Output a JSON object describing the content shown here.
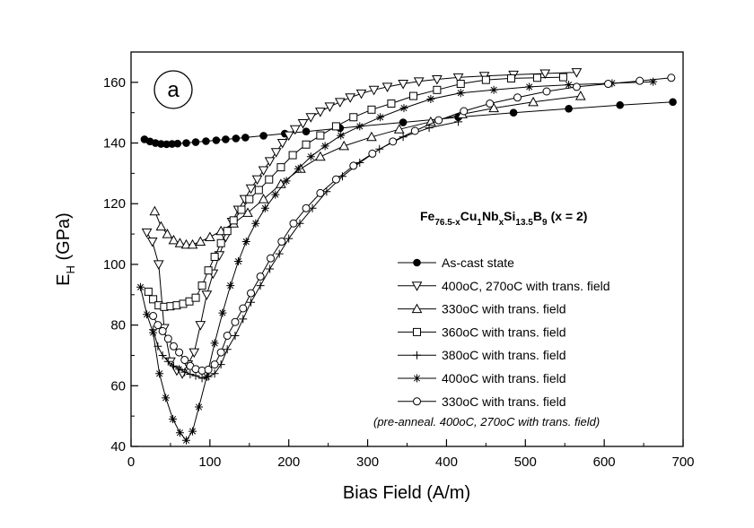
{
  "chart_data": {
    "type": "line",
    "panel_label": "a",
    "xlabel": "Bias Field (A/m)",
    "ylabel": {
      "main": "E",
      "sub": "H",
      "rest": " (GPa)"
    },
    "xlim": [
      0,
      700
    ],
    "ylim": [
      40,
      170
    ],
    "xticks": [
      0,
      100,
      200,
      300,
      400,
      500,
      600,
      700
    ],
    "yticks": [
      40,
      60,
      80,
      100,
      120,
      140,
      160
    ],
    "grid": false,
    "legend_position": "lower-right",
    "formula": [
      {
        "text": "Fe",
        "sub": false
      },
      {
        "text": "76.5-x",
        "sub": true
      },
      {
        "text": "Cu",
        "sub": false
      },
      {
        "text": "1",
        "sub": true
      },
      {
        "text": "Nb",
        "sub": false
      },
      {
        "text": "x",
        "sub": true
      },
      {
        "text": "Si",
        "sub": false
      },
      {
        "text": "13.5",
        "sub": true
      },
      {
        "text": "B",
        "sub": false
      },
      {
        "text": "9",
        "sub": true
      },
      {
        "text": "(x = 2)",
        "sub": false
      }
    ],
    "note": "(pre-anneal. 400oC, 270oC with trans. field)",
    "series": [
      {
        "name": "As-cast state",
        "marker": "filled-circle",
        "x": [
          17,
          24,
          31,
          38,
          45,
          52,
          59,
          70,
          82,
          95,
          108,
          120,
          133,
          145,
          168,
          195,
          222,
          265,
          345,
          415,
          485,
          555,
          620,
          687
        ],
        "y": [
          141.2,
          140.5,
          140,
          139.7,
          139.6,
          139.7,
          139.8,
          140,
          140.3,
          140.6,
          140.9,
          141.2,
          141.5,
          141.8,
          142.4,
          143.1,
          143.8,
          144.9,
          146.8,
          148.5,
          150.0,
          151.3,
          152.5,
          153.5
        ]
      },
      {
        "name": "400oC, 270oC with trans. field",
        "marker": "triangle-down",
        "x": [
          20,
          27,
          35,
          42,
          50,
          58,
          65,
          72,
          80,
          88,
          96,
          104,
          112,
          120,
          128,
          136,
          144,
          152,
          160,
          168,
          176,
          184,
          192,
          200,
          208,
          218,
          228,
          240,
          252,
          265,
          278,
          292,
          308,
          325,
          345,
          365,
          388,
          415,
          448,
          485,
          525,
          565
        ],
        "y": [
          110.5,
          107.5,
          100,
          79,
          68,
          65,
          64,
          67,
          71,
          80,
          90,
          97,
          103,
          109,
          114,
          118,
          121.5,
          125,
          128,
          131,
          134,
          137,
          140,
          142.5,
          144.5,
          146.5,
          148.5,
          150.3,
          152,
          153.5,
          155,
          156.3,
          157.5,
          158.5,
          159.5,
          160.3,
          161,
          161.6,
          162.1,
          162.5,
          162.9,
          163.3
        ]
      },
      {
        "name": "330oC with trans. field",
        "marker": "triangle-up",
        "x": [
          30,
          38,
          46,
          54,
          62,
          70,
          78,
          88,
          100,
          114,
          130,
          148,
          168,
          190,
          215,
          240,
          270,
          305,
          340,
          380,
          420,
          460,
          510,
          570
        ],
        "y": [
          117.5,
          112.5,
          110,
          108,
          107,
          106.5,
          106.5,
          107.5,
          109,
          111,
          113.5,
          117,
          121.5,
          126.5,
          131.5,
          135.5,
          139,
          142,
          144.5,
          147,
          149.5,
          151.5,
          153.5,
          155.5
        ]
      },
      {
        "name": "360oC with trans. field",
        "marker": "square",
        "x": [
          22,
          28,
          35,
          42,
          50,
          58,
          66,
          74,
          82,
          90,
          98,
          106,
          114,
          122,
          130,
          140,
          150,
          162,
          175,
          190,
          205,
          222,
          240,
          260,
          282,
          305,
          330,
          358,
          388,
          418,
          450,
          482,
          515,
          548
        ],
        "y": [
          91,
          88.5,
          86.5,
          86,
          86.2,
          86.5,
          87,
          87.8,
          89,
          93,
          98,
          102.5,
          107,
          111,
          114.5,
          118,
          121.5,
          124.5,
          128,
          132,
          136,
          139.5,
          142.5,
          145.5,
          148.5,
          151,
          153,
          155.5,
          157.5,
          159.5,
          160.8,
          161.3,
          161.5,
          161.7
        ]
      },
      {
        "name": "380oC with trans. field",
        "marker": "plus",
        "x": [
          28,
          34,
          40,
          47,
          54,
          61,
          68,
          75,
          82,
          90,
          98,
          106,
          114,
          122,
          132,
          142,
          152,
          164,
          176,
          188,
          200,
          214,
          230,
          248,
          268,
          290,
          315,
          345,
          378,
          415
        ],
        "y": [
          78.5,
          73,
          70,
          68,
          66.5,
          65.5,
          64.5,
          63.8,
          63.3,
          62.5,
          63,
          64,
          67,
          72,
          76.5,
          82,
          87.5,
          93,
          98.5,
          103.5,
          108.5,
          113.5,
          118.5,
          124,
          129,
          133.5,
          138,
          142,
          145,
          147
        ]
      },
      {
        "name": "400oC with trans. field",
        "marker": "star",
        "x": [
          12,
          20,
          28,
          36,
          44,
          53,
          62,
          70,
          78,
          86,
          96,
          106,
          116,
          126,
          136,
          146,
          158,
          170,
          183,
          197,
          212,
          228,
          246,
          266,
          290,
          316,
          346,
          380,
          418,
          460,
          505,
          555,
          610,
          662
        ],
        "y": [
          92.5,
          83.5,
          77.5,
          64,
          56,
          49,
          44.5,
          42,
          45,
          53,
          63,
          74,
          84,
          93,
          101,
          107.5,
          113.5,
          118.5,
          123,
          127.5,
          131.5,
          135.5,
          139,
          142.5,
          145.5,
          148.5,
          151.5,
          154.5,
          156.5,
          157.5,
          158.5,
          159.2,
          159.7,
          160.2
        ]
      },
      {
        "name": "330oC with trans. field",
        "marker": "open-circle",
        "x": [
          28,
          34,
          40,
          47,
          54,
          61,
          68,
          75,
          82,
          90,
          98,
          106,
          114,
          122,
          132,
          142,
          152,
          164,
          177,
          191,
          206,
          222,
          240,
          260,
          282,
          306,
          332,
          360,
          390,
          422,
          455,
          490,
          527,
          565,
          605,
          645,
          685
        ],
        "y": [
          83,
          80,
          78,
          75.5,
          73,
          71,
          68.5,
          66.5,
          65.5,
          65,
          65.3,
          67,
          71,
          76.5,
          81,
          85.5,
          90.5,
          96,
          102,
          107.5,
          113.5,
          118.5,
          123.5,
          128,
          132.5,
          136.5,
          140.5,
          144,
          147.5,
          150.5,
          153,
          155,
          157,
          158.5,
          159.5,
          160.5,
          161.5
        ]
      }
    ]
  }
}
